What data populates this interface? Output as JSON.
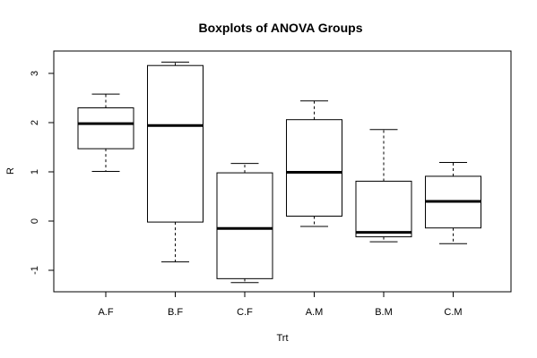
{
  "chart_data": {
    "type": "boxplot",
    "title": "Boxplots of ANOVA Groups",
    "xlabel": "Trt",
    "ylabel": "R",
    "ylim": [
      -1.4,
      3.4
    ],
    "yticks": [
      -1,
      0,
      1,
      2,
      3
    ],
    "ytick_labels": [
      "-1",
      "0",
      "1",
      "2",
      "3"
    ],
    "grid": false,
    "categories": [
      "A.F",
      "B.F",
      "C.F",
      "A.M",
      "B.M",
      "C.M"
    ],
    "boxes": [
      {
        "category": "A.F",
        "whisker_low": 1.01,
        "q1": 1.47,
        "median": 1.98,
        "q3": 2.3,
        "whisker_high": 2.58
      },
      {
        "category": "B.F",
        "whisker_low": -0.83,
        "q1": -0.02,
        "median": 1.94,
        "q3": 3.16,
        "whisker_high": 3.23
      },
      {
        "category": "C.F",
        "whisker_low": -1.25,
        "q1": -1.17,
        "median": -0.15,
        "q3": 0.98,
        "whisker_high": 1.17
      },
      {
        "category": "A.M",
        "whisker_low": -0.11,
        "q1": 0.1,
        "median": 0.99,
        "q3": 2.06,
        "whisker_high": 2.44
      },
      {
        "category": "B.M",
        "whisker_low": -0.42,
        "q1": -0.32,
        "median": -0.23,
        "q3": 0.81,
        "whisker_high": 1.86
      },
      {
        "category": "C.M",
        "whisker_low": -0.46,
        "q1": -0.14,
        "median": 0.4,
        "q3": 0.91,
        "whisker_high": 1.19
      }
    ]
  }
}
